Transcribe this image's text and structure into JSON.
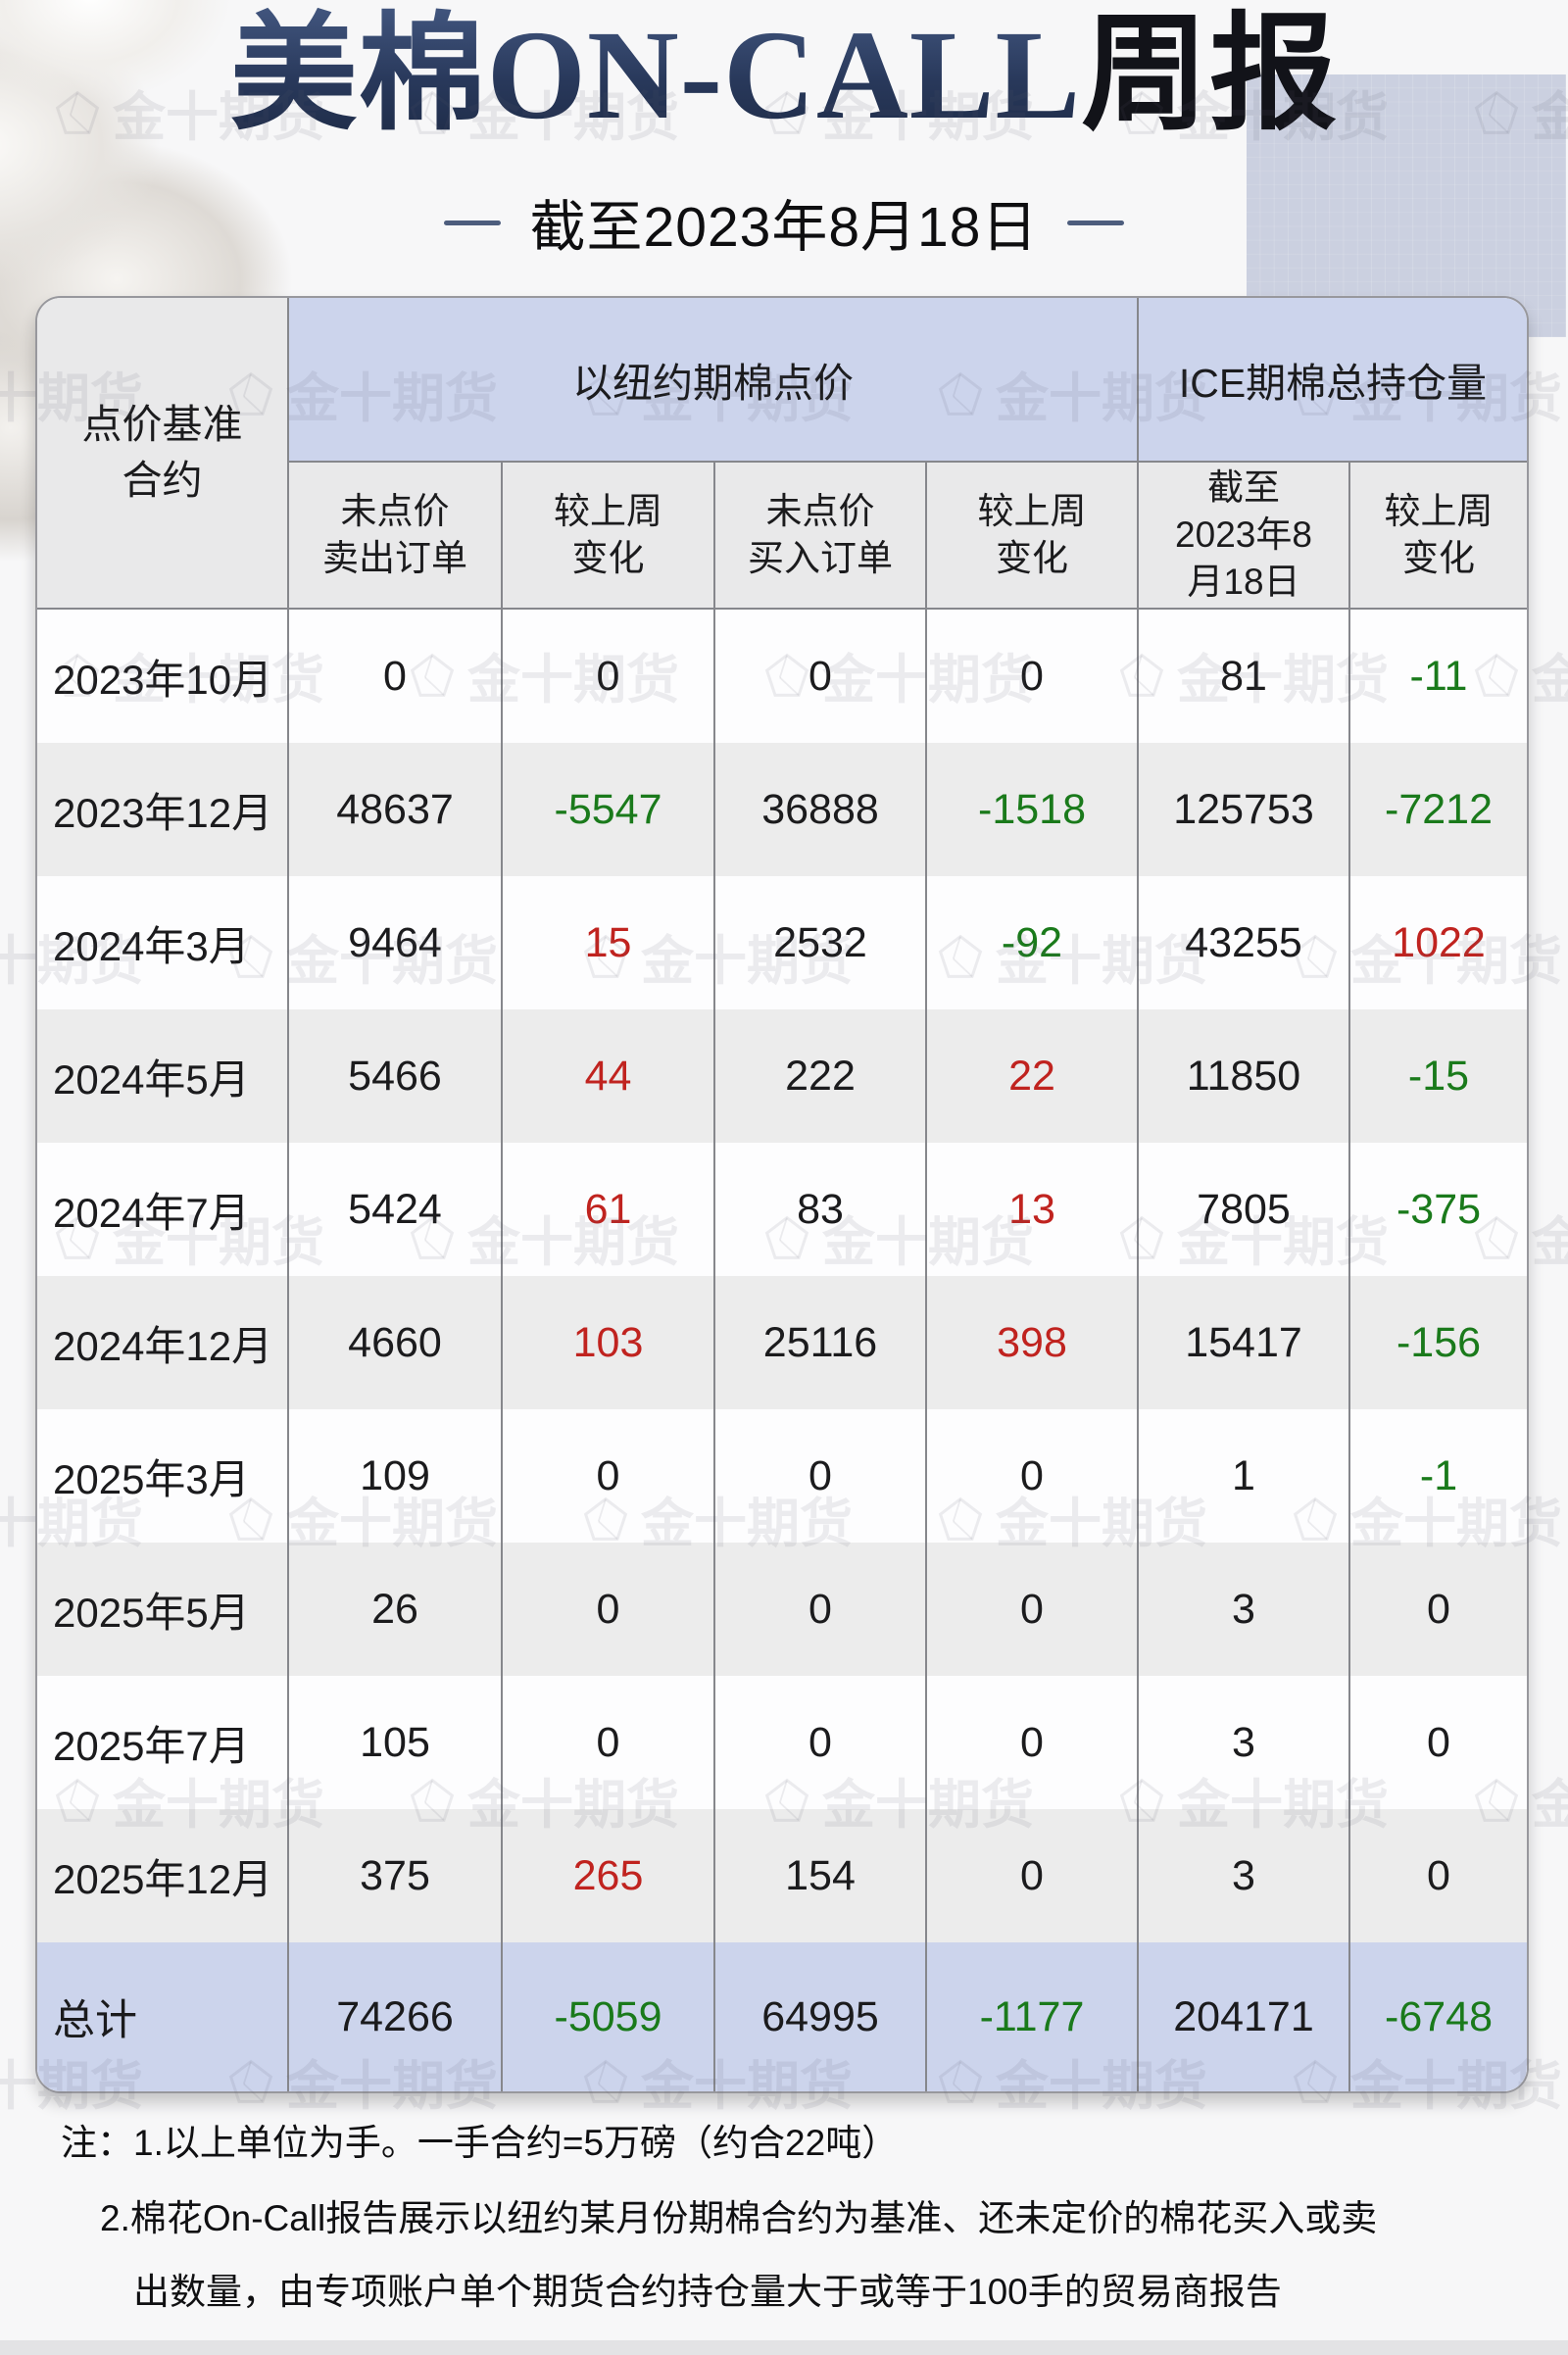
{
  "title": {
    "navy": "美棉ON-CALL",
    "black": "周报"
  },
  "subtitle": "截至2023年8月18日",
  "watermark": {
    "text": "金十期货"
  },
  "chart_data": {
    "type": "table",
    "title": "美棉ON-CALL周报",
    "as_of": "截至2023年8月18日",
    "corner_header": "点价基准\n合约",
    "group_headers": [
      "以纽约期棉点价",
      "ICE期棉总持仓量"
    ],
    "col_headers": [
      "未点价\n卖出订单",
      "较上周\n变化",
      "未点价\n买入订单",
      "较上周\n变化",
      "截至\n2023年8\n月18日",
      "较上周\n变化"
    ],
    "change_column_indices": [
      1,
      3,
      5
    ],
    "rows": [
      {
        "label": "2023年10月",
        "values": [
          0,
          0,
          0,
          0,
          81,
          -11
        ]
      },
      {
        "label": "2023年12月",
        "values": [
          48637,
          -5547,
          36888,
          -1518,
          125753,
          -7212
        ]
      },
      {
        "label": "2024年3月",
        "values": [
          9464,
          15,
          2532,
          -92,
          43255,
          1022
        ]
      },
      {
        "label": "2024年5月",
        "values": [
          5466,
          44,
          222,
          22,
          11850,
          -15
        ]
      },
      {
        "label": "2024年7月",
        "values": [
          5424,
          61,
          83,
          13,
          7805,
          -375
        ]
      },
      {
        "label": "2024年12月",
        "values": [
          4660,
          103,
          25116,
          398,
          15417,
          -156
        ]
      },
      {
        "label": "2025年3月",
        "values": [
          109,
          0,
          0,
          0,
          1,
          -1
        ]
      },
      {
        "label": "2025年5月",
        "values": [
          26,
          0,
          0,
          0,
          3,
          0
        ]
      },
      {
        "label": "2025年7月",
        "values": [
          105,
          0,
          0,
          0,
          3,
          0
        ]
      },
      {
        "label": "2025年12月",
        "values": [
          375,
          265,
          154,
          0,
          3,
          0
        ]
      }
    ],
    "total": {
      "label": "总计",
      "values": [
        74266,
        -5059,
        64995,
        -1177,
        204171,
        -6748
      ]
    }
  },
  "notes": {
    "line1": "注：1.以上单位为手。一手合约=5万磅（约合22吨）",
    "line2": "2.棉花On-Call报告展示以纽约某月份期棉合约为基准、还未定价的棉花买入或卖",
    "line3": "出数量，由专项账户单个期货合约持仓量大于或等于100手的贸易商报告"
  },
  "colors": {
    "positive": "#c0231f",
    "negative": "#1a7a1b",
    "neutral": "#1b1b1d",
    "header_fill": "#ccd4ec",
    "subheader_fill": "#e9e9ea",
    "row_alt_fill": "#ececec",
    "total_fill": "#ccd4ec",
    "title_navy": "#2d4067"
  }
}
